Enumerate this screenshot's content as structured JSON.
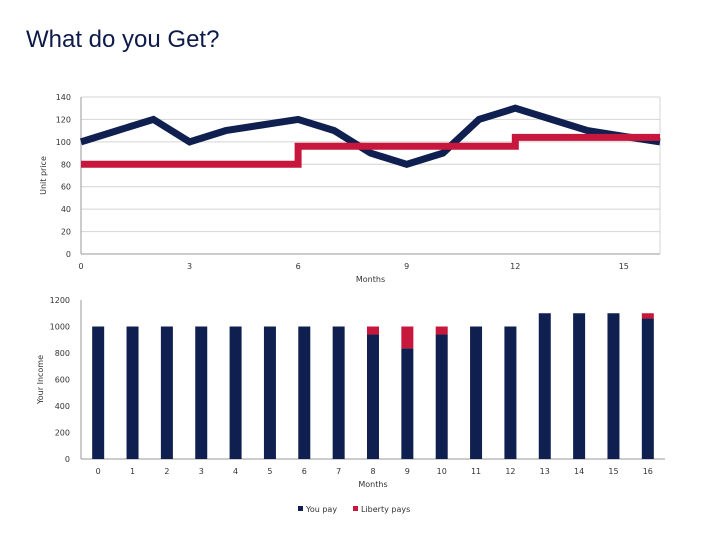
{
  "slide": {
    "title": "What do you Get?"
  },
  "colors": {
    "navy": "#0f1f4f",
    "red": "#c8173c",
    "grid": "#d4d4d4"
  },
  "chart_data": [
    {
      "type": "line",
      "title": "",
      "xlabel": "Months",
      "ylabel": "Unit price",
      "xlim": [
        0,
        16
      ],
      "ylim": [
        0,
        140
      ],
      "yticks": [
        0,
        20,
        40,
        60,
        80,
        100,
        120,
        140
      ],
      "xticks": [
        0,
        3,
        6,
        9,
        12,
        15
      ],
      "grid": true,
      "legend": "none",
      "series": [
        {
          "color": "#0f1f4f",
          "x": [
            0,
            1,
            2,
            3,
            4,
            5,
            6,
            7,
            8,
            9,
            10,
            11,
            12,
            13,
            14,
            15,
            16
          ],
          "y": [
            100,
            110,
            120,
            100,
            110,
            115,
            120,
            110,
            90,
            80,
            90,
            120,
            130,
            120,
            110,
            105,
            100
          ]
        },
        {
          "color": "#c8173c",
          "step": true,
          "x": [
            0,
            6,
            6,
            12,
            12,
            16
          ],
          "y": [
            80,
            80,
            96,
            96,
            104,
            104
          ]
        }
      ]
    },
    {
      "type": "bar",
      "stacked": true,
      "title": "",
      "xlabel": "Months",
      "ylabel": "Your Income",
      "categories": [
        "0",
        "1",
        "2",
        "3",
        "4",
        "5",
        "6",
        "7",
        "8",
        "9",
        "10",
        "11",
        "12",
        "13",
        "14",
        "15",
        "16"
      ],
      "ylim": [
        0,
        1200
      ],
      "yticks": [
        0,
        200,
        400,
        600,
        800,
        1000,
        1200
      ],
      "grid": false,
      "legend": "bottom",
      "series": [
        {
          "name": "You pay",
          "color": "#0f1f4f",
          "values": [
            1000,
            1000,
            1000,
            1000,
            1000,
            1000,
            1000,
            1000,
            940,
            835,
            940,
            1000,
            1000,
            1100,
            1100,
            1100,
            1060
          ]
        },
        {
          "name": "Liberty pays",
          "color": "#c8173c",
          "values": [
            0,
            0,
            0,
            0,
            0,
            0,
            0,
            0,
            60,
            165,
            60,
            0,
            0,
            0,
            0,
            0,
            40
          ]
        }
      ]
    }
  ]
}
